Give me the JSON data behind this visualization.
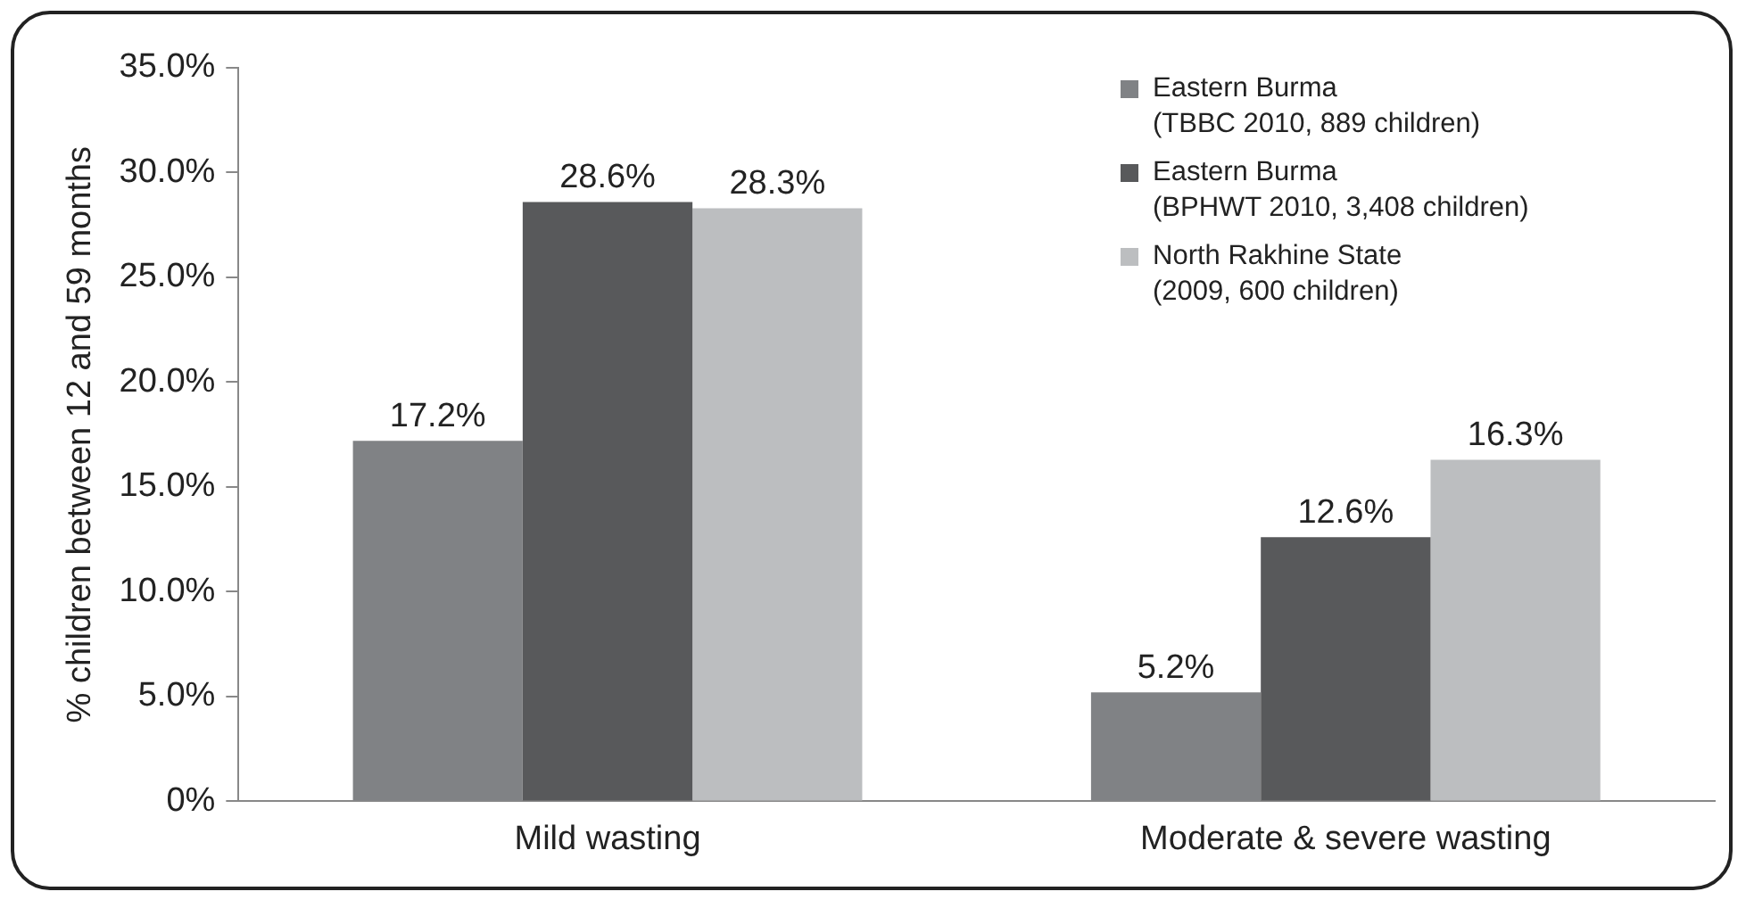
{
  "chart_data": {
    "type": "bar",
    "ylabel": "% children between 12 and 59 months",
    "categories": [
      "Mild wasting",
      "Moderate & severe wasting"
    ],
    "series": [
      {
        "name": "Eastern Burma (TBBC 2010, 889 children)",
        "color": "#808285",
        "values": [
          17.2,
          5.2
        ],
        "value_labels": [
          "17.2%",
          "5.2%"
        ]
      },
      {
        "name": "Eastern Burma (BPHWT 2010, 3,408 children)",
        "color": "#58595b",
        "values": [
          28.6,
          12.6
        ],
        "value_labels": [
          "28.6%",
          "12.6%"
        ]
      },
      {
        "name": "North Rakhine State (2009, 600 children)",
        "color": "#bcbec0",
        "values": [
          28.3,
          16.3
        ],
        "value_labels": [
          "28.3%",
          "16.3%"
        ]
      }
    ],
    "ylim": [
      0,
      35
    ],
    "yticks": [
      {
        "value": 0,
        "label": "0%"
      },
      {
        "value": 5,
        "label": "5.0%"
      },
      {
        "value": 10,
        "label": "10.0%"
      },
      {
        "value": 15,
        "label": "15.0%"
      },
      {
        "value": 20,
        "label": "20.0%"
      },
      {
        "value": 25,
        "label": "25.0%"
      },
      {
        "value": 30,
        "label": "30.0%"
      },
      {
        "value": 35,
        "label": "35.0%"
      }
    ],
    "grid": false,
    "legend": "top right"
  }
}
